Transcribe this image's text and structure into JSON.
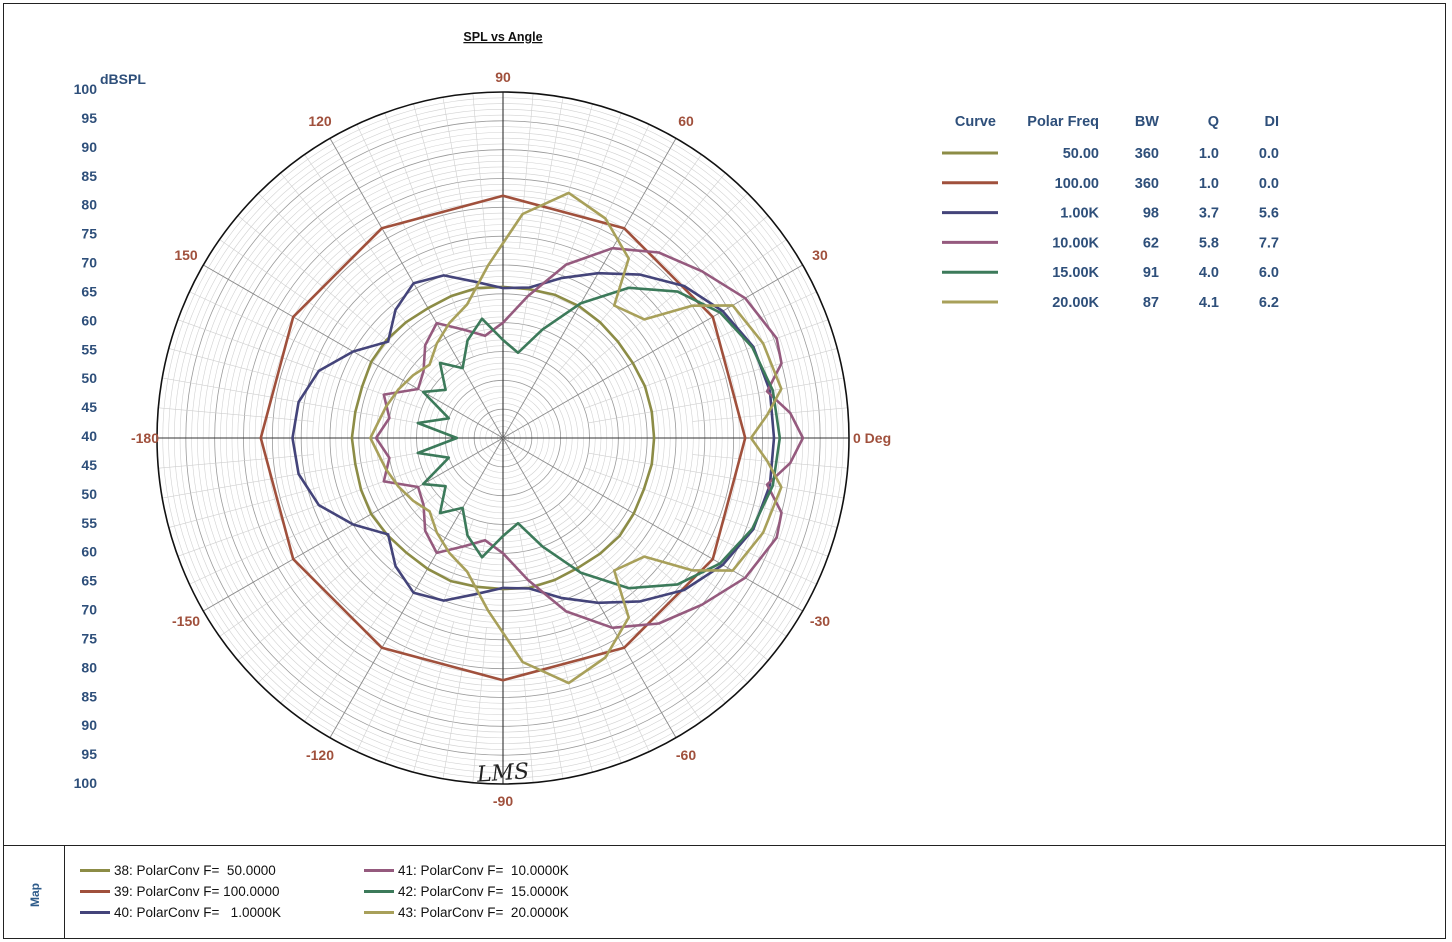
{
  "chart_data": {
    "type": "polar",
    "title": "SPL vs Angle",
    "radial_axis": {
      "unit": "dBSPL",
      "min": 40,
      "max": 100,
      "tick_labels_top": [
        "100",
        "95",
        "90",
        "85",
        "80",
        "75",
        "70",
        "65",
        "60",
        "55",
        "50",
        "45"
      ],
      "tick_label_center": "40",
      "tick_labels_bottom": [
        "45",
        "50",
        "55",
        "60",
        "65",
        "70",
        "75",
        "80",
        "85",
        "90",
        "95",
        "100"
      ]
    },
    "angle_labels": [
      {
        "angle": 0,
        "label": "0 Deg"
      },
      {
        "angle": 30,
        "label": "30"
      },
      {
        "angle": 60,
        "label": "60"
      },
      {
        "angle": 90,
        "label": "90"
      },
      {
        "angle": 120,
        "label": "120"
      },
      {
        "angle": 150,
        "label": "150"
      },
      {
        "angle": 180,
        "label": "-180"
      },
      {
        "angle": -150,
        "label": "-150"
      },
      {
        "angle": -120,
        "label": "-120"
      },
      {
        "angle": -90,
        "label": "-90"
      },
      {
        "angle": -60,
        "label": "-60"
      },
      {
        "angle": -30,
        "label": "-30"
      }
    ],
    "series": [
      {
        "name": "38: PolarConv F=  50.0000",
        "color": "#8c8c46",
        "points": [
          [
            0,
            66.2
          ],
          [
            10,
            66.2
          ],
          [
            20,
            66.2
          ],
          [
            30,
            66.0
          ],
          [
            40,
            66.0
          ],
          [
            50,
            66.2
          ],
          [
            60,
            66.4
          ],
          [
            70,
            66.4
          ],
          [
            80,
            66.2
          ],
          [
            90,
            66.2
          ],
          [
            100,
            66.4
          ],
          [
            110,
            66.2
          ],
          [
            120,
            66.0
          ],
          [
            130,
            66.2
          ],
          [
            140,
            66.4
          ],
          [
            150,
            66.4
          ],
          [
            160,
            66.0
          ],
          [
            170,
            66.0
          ],
          [
            180,
            66.2
          ],
          [
            -170,
            66.0
          ],
          [
            -160,
            66.2
          ],
          [
            -150,
            66.4
          ],
          [
            -140,
            66.2
          ],
          [
            -130,
            66.0
          ],
          [
            -120,
            66.2
          ],
          [
            -110,
            66.4
          ],
          [
            -100,
            66.2
          ],
          [
            -90,
            66.2
          ],
          [
            -80,
            66.4
          ],
          [
            -70,
            66.2
          ],
          [
            -60,
            66.0
          ],
          [
            -50,
            66.2
          ],
          [
            -40,
            66.4
          ],
          [
            -30,
            66.2
          ],
          [
            -20,
            66.0
          ],
          [
            -10,
            66.2
          ]
        ]
      },
      {
        "name": "39: PolarConv F= 100.0000",
        "color": "#a0503c",
        "points": [
          [
            0,
            82.0
          ],
          [
            30,
            82.0
          ],
          [
            60,
            82.0
          ],
          [
            90,
            82.0
          ],
          [
            120,
            82.0
          ],
          [
            150,
            82.0
          ],
          [
            180,
            82.0
          ],
          [
            -150,
            82.0
          ],
          [
            -120,
            82.0
          ],
          [
            -90,
            82.0
          ],
          [
            -60,
            82.0
          ],
          [
            -30,
            82.0
          ]
        ]
      },
      {
        "name": "40: PolarConv F=   1.0000K",
        "color": "#44447a",
        "points": [
          [
            0,
            87.0
          ],
          [
            10,
            87.0
          ],
          [
            20,
            86.2
          ],
          [
            30,
            84.0
          ],
          [
            40,
            81.0
          ],
          [
            50,
            77.0
          ],
          [
            60,
            73.0
          ],
          [
            70,
            69.5
          ],
          [
            80,
            66.5
          ],
          [
            90,
            66.0
          ],
          [
            100,
            67.5
          ],
          [
            110,
            70.0
          ],
          [
            120,
            71.0
          ],
          [
            130,
            69.0
          ],
          [
            140,
            66.0
          ],
          [
            150,
            70.0
          ],
          [
            160,
            74.0
          ],
          [
            170,
            76.0
          ],
          [
            180,
            76.5
          ],
          [
            -170,
            76.0
          ],
          [
            -160,
            74.0
          ],
          [
            -150,
            70.0
          ],
          [
            -140,
            66.0
          ],
          [
            -130,
            69.0
          ],
          [
            -120,
            71.0
          ],
          [
            -110,
            70.0
          ],
          [
            -100,
            67.5
          ],
          [
            -90,
            66.0
          ],
          [
            -80,
            66.5
          ],
          [
            -70,
            69.5
          ],
          [
            -60,
            73.0
          ],
          [
            -50,
            77.0
          ],
          [
            -40,
            81.0
          ],
          [
            -30,
            84.0
          ],
          [
            -20,
            86.2
          ],
          [
            -10,
            87.0
          ]
        ]
      },
      {
        "name": "41: PolarConv F=  10.0000K",
        "color": "#955a7e",
        "points": [
          [
            0,
            92.0
          ],
          [
            5,
            90.0
          ],
          [
            10,
            86.5
          ],
          [
            15,
            90.0
          ],
          [
            20,
            90.5
          ],
          [
            30,
            88.5
          ],
          [
            40,
            85.0
          ],
          [
            50,
            82.0
          ],
          [
            60,
            78.0
          ],
          [
            70,
            72.0
          ],
          [
            80,
            65.0
          ],
          [
            90,
            60.0
          ],
          [
            100,
            58.0
          ],
          [
            110,
            60.0
          ],
          [
            120,
            63.0
          ],
          [
            130,
            61.0
          ],
          [
            140,
            58.0
          ],
          [
            150,
            57.0
          ],
          [
            160,
            62.0
          ],
          [
            170,
            60.0
          ],
          [
            180,
            62.0
          ],
          [
            -170,
            60.0
          ],
          [
            -160,
            62.0
          ],
          [
            -150,
            57.0
          ],
          [
            -140,
            58.0
          ],
          [
            -130,
            61.0
          ],
          [
            -120,
            63.0
          ],
          [
            -110,
            60.0
          ],
          [
            -100,
            58.0
          ],
          [
            -90,
            60.0
          ],
          [
            -80,
            65.0
          ],
          [
            -70,
            72.0
          ],
          [
            -60,
            78.0
          ],
          [
            -50,
            82.0
          ],
          [
            -40,
            85.0
          ],
          [
            -30,
            88.5
          ],
          [
            -20,
            90.5
          ],
          [
            -15,
            90.0
          ],
          [
            -10,
            86.5
          ],
          [
            -5,
            90.0
          ]
        ]
      },
      {
        "name": "42: PolarConv F=  15.0000K",
        "color": "#3c7a5a",
        "points": [
          [
            0,
            88.0
          ],
          [
            10,
            87.5
          ],
          [
            20,
            86.0
          ],
          [
            30,
            83.5
          ],
          [
            40,
            79.5
          ],
          [
            50,
            74.0
          ],
          [
            60,
            67.0
          ],
          [
            70,
            60.0
          ],
          [
            80,
            55.0
          ],
          [
            90,
            57.0
          ],
          [
            100,
            61.0
          ],
          [
            110,
            58.0
          ],
          [
            120,
            54.0
          ],
          [
            130,
            57.0
          ],
          [
            140,
            53.0
          ],
          [
            150,
            56.0
          ],
          [
            160,
            50.0
          ],
          [
            170,
            55.0
          ],
          [
            180,
            48.0
          ],
          [
            -170,
            55.0
          ],
          [
            -160,
            50.0
          ],
          [
            -150,
            56.0
          ],
          [
            -140,
            53.0
          ],
          [
            -130,
            57.0
          ],
          [
            -120,
            54.0
          ],
          [
            -110,
            58.0
          ],
          [
            -100,
            61.0
          ],
          [
            -90,
            57.0
          ],
          [
            -80,
            55.0
          ],
          [
            -70,
            60.0
          ],
          [
            -60,
            67.0
          ],
          [
            -50,
            74.0
          ],
          [
            -40,
            79.5
          ],
          [
            -30,
            83.5
          ],
          [
            -20,
            86.0
          ],
          [
            -10,
            87.5
          ]
        ]
      },
      {
        "name": "43: PolarConv F=  20.0000K",
        "color": "#a8a05a",
        "points": [
          [
            0,
            83.0
          ],
          [
            5,
            86.0
          ],
          [
            10,
            89.0
          ],
          [
            20,
            88.0
          ],
          [
            30,
            86.0
          ],
          [
            35,
            80.0
          ],
          [
            40,
            72.0
          ],
          [
            50,
            70.0
          ],
          [
            55,
            78.0
          ],
          [
            65,
            82.0
          ],
          [
            75,
            84.0
          ],
          [
            85,
            79.0
          ],
          [
            95,
            70.0
          ],
          [
            105,
            64.0
          ],
          [
            115,
            62.0
          ],
          [
            125,
            60.0
          ],
          [
            135,
            58.0
          ],
          [
            145,
            59.0
          ],
          [
            155,
            60.0
          ],
          [
            165,
            61.0
          ],
          [
            180,
            63.0
          ],
          [
            -165,
            61.0
          ],
          [
            -155,
            60.0
          ],
          [
            -145,
            59.0
          ],
          [
            -135,
            58.0
          ],
          [
            -125,
            60.0
          ],
          [
            -115,
            62.0
          ],
          [
            -105,
            64.0
          ],
          [
            -95,
            70.0
          ],
          [
            -85,
            79.0
          ],
          [
            -75,
            84.0
          ],
          [
            -65,
            82.0
          ],
          [
            -55,
            78.0
          ],
          [
            -50,
            70.0
          ],
          [
            -40,
            72.0
          ],
          [
            -35,
            80.0
          ],
          [
            -30,
            86.0
          ],
          [
            -20,
            88.0
          ],
          [
            -10,
            89.0
          ],
          [
            -5,
            86.0
          ]
        ]
      }
    ],
    "table": {
      "columns": [
        "Curve",
        "Polar Freq",
        "BW",
        "Q",
        "DI"
      ],
      "rows": [
        {
          "freq": "50.00",
          "bw": "360",
          "q": "1.0",
          "di": "0.0"
        },
        {
          "freq": "100.00",
          "bw": "360",
          "q": "1.0",
          "di": "0.0"
        },
        {
          "freq": "1.00K",
          "bw": "98",
          "q": "3.7",
          "di": "5.6"
        },
        {
          "freq": "10.00K",
          "bw": "62",
          "q": "5.8",
          "di": "7.7"
        },
        {
          "freq": "15.00K",
          "bw": "91",
          "q": "4.0",
          "di": "6.0"
        },
        {
          "freq": "20.00K",
          "bw": "87",
          "q": "4.1",
          "di": "6.2"
        }
      ]
    },
    "watermark": "LMS",
    "grid": true,
    "legend_position": "right"
  },
  "map": {
    "label": "Map"
  },
  "colors": {
    "tick_label_blue": "#2e4f7a",
    "angle_label_red": "#a0503c"
  }
}
